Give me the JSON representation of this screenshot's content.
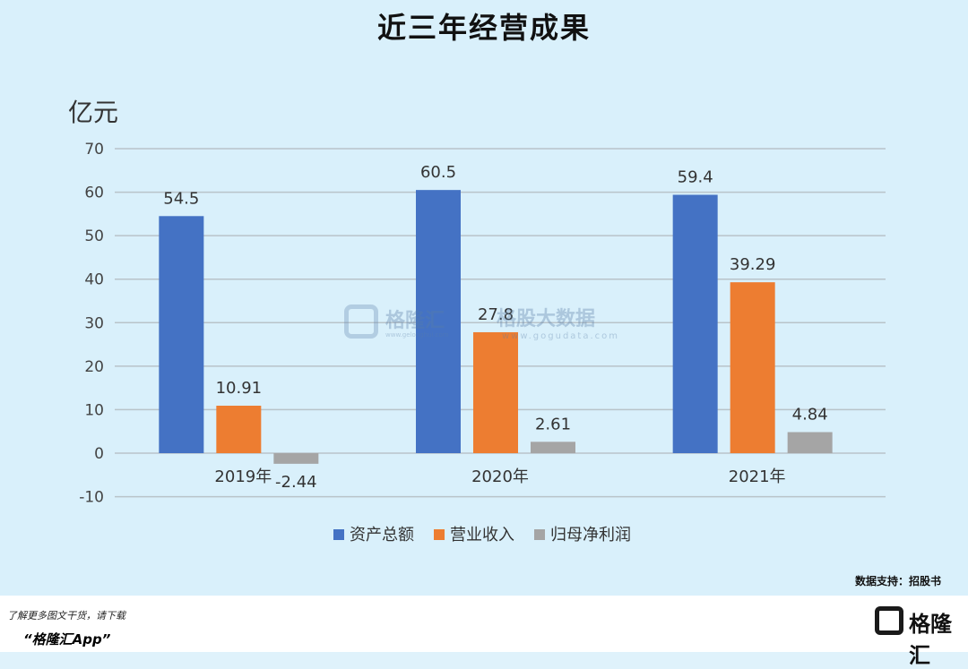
{
  "chart_data": {
    "type": "bar",
    "title": "近三年经营成果",
    "unit_label": "亿元",
    "categories": [
      "2019年",
      "2020年",
      "2021年"
    ],
    "series": [
      {
        "name": "资产总额",
        "color": "#4472c4",
        "values": [
          54.5,
          60.5,
          59.4
        ],
        "labels": [
          "54.5",
          "60.5",
          "59.4"
        ]
      },
      {
        "name": "营业收入",
        "color": "#ed7d31",
        "values": [
          10.91,
          27.8,
          39.29
        ],
        "labels": [
          "10.91",
          "27.8",
          "39.29"
        ]
      },
      {
        "name": "归母净利润",
        "color": "#a5a5a5",
        "values": [
          -2.44,
          2.61,
          4.84
        ],
        "labels": [
          "-2.44",
          "2.61",
          "4.84"
        ]
      }
    ],
    "y_ticks": [
      "-10",
      "0",
      "10",
      "20",
      "30",
      "40",
      "50",
      "60",
      "70"
    ],
    "ylim": [
      -10,
      70
    ],
    "grid": true,
    "legend_position": "bottom"
  },
  "watermark": {
    "name": "格隆汇",
    "sub1": "www.gelonghui.com",
    "name2": "格股大数据",
    "sub2": "www.gogudata.com"
  },
  "source": "数据支持：招股书",
  "footer": {
    "line1": "了解更多图文干货，请下载",
    "line2": "“格隆汇App”",
    "brand": "格隆汇"
  }
}
